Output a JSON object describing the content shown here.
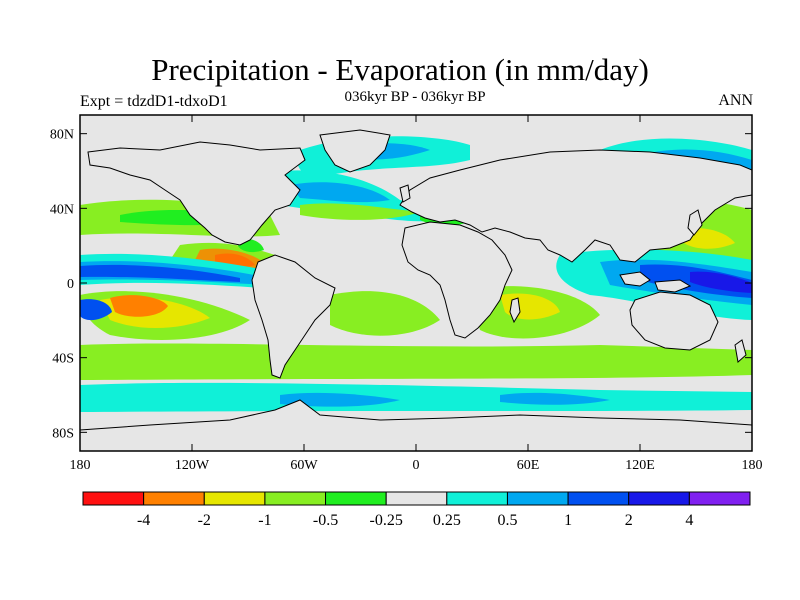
{
  "header": {
    "title": "Precipitation - Evaporation (in mm/day)",
    "subtitle": "036kyr BP - 036kyr BP",
    "left_label": "Expt = tdzdD1-tdxoD1",
    "right_label": "ANN"
  },
  "map": {
    "projection": "cylindrical equidistant",
    "lon_range": [
      -180,
      180
    ],
    "lat_range": [
      -90,
      90
    ],
    "lat_ticks": [
      {
        "value": 80,
        "label": "80N"
      },
      {
        "value": 40,
        "label": "40N"
      },
      {
        "value": 0,
        "label": "0"
      },
      {
        "value": -40,
        "label": "40S"
      },
      {
        "value": -80,
        "label": "80S"
      }
    ],
    "lon_ticks": [
      {
        "value": -180,
        "label": "180"
      },
      {
        "value": -120,
        "label": "120W"
      },
      {
        "value": -60,
        "label": "60W"
      },
      {
        "value": 0,
        "label": "0"
      },
      {
        "value": 60,
        "label": "60E"
      },
      {
        "value": 120,
        "label": "120E"
      },
      {
        "value": 180,
        "label": "180"
      }
    ],
    "background_color": "#e6e6e6",
    "coastline_color": "#000000"
  },
  "colorbar": {
    "colors": [
      "#ff1010",
      "#ff8000",
      "#e6e600",
      "#88ee22",
      "#20ee20",
      "#e6e6e6",
      "#10f0d8",
      "#00a8f0",
      "#0050f0",
      "#1818e8",
      "#8020f0"
    ],
    "labels": [
      "-4",
      "-2",
      "-1",
      "-0.5",
      "-0.25",
      "0.25",
      "0.5",
      "1",
      "2",
      "4"
    ]
  }
}
